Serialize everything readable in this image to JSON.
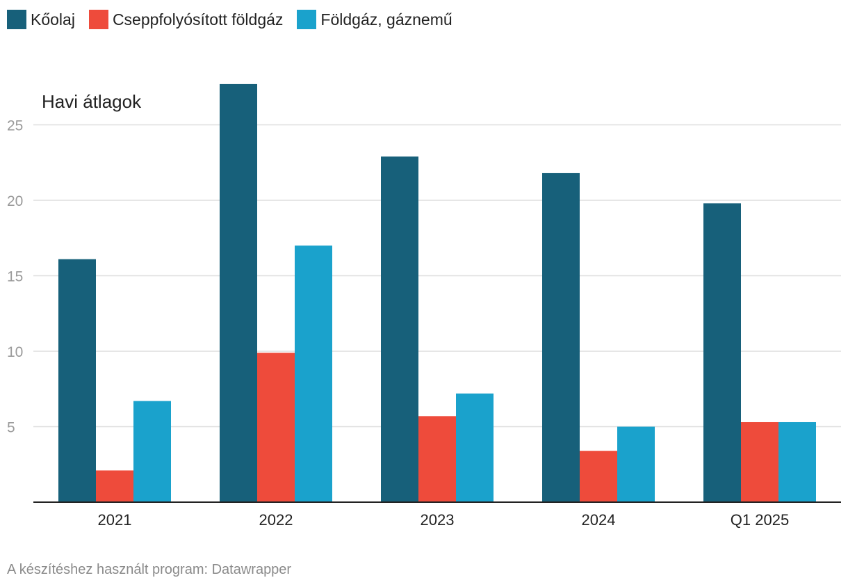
{
  "chart_data": {
    "type": "bar",
    "title": "",
    "ylabel": "Havi átlagok",
    "xlabel": "",
    "categories": [
      "2021",
      "2022",
      "2023",
      "2024",
      "Q1 2025"
    ],
    "series": [
      {
        "name": "Kőolaj",
        "color": "#17607a",
        "values": [
          16.1,
          27.7,
          22.9,
          21.8,
          19.8
        ]
      },
      {
        "name": "Cseppfolyósított földgáz",
        "color": "#ee4b3b",
        "values": [
          2.1,
          9.9,
          5.7,
          3.4,
          5.3
        ]
      },
      {
        "name": "Földgáz, gáznemű",
        "color": "#1aa2cc",
        "values": [
          6.7,
          17.0,
          7.2,
          5.0,
          5.3
        ]
      }
    ],
    "yticks": [
      5,
      10,
      15,
      20,
      25
    ],
    "ylim": [
      0,
      30
    ],
    "grid": true,
    "legend": "top-left"
  },
  "footer": {
    "credit": "A készítéshez használt program: Datawrapper"
  }
}
